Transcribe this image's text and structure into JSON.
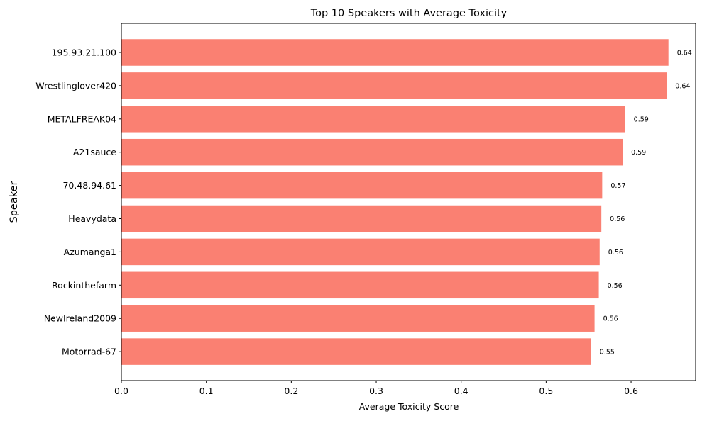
{
  "chart_data": {
    "type": "bar",
    "orientation": "horizontal",
    "title": "Top 10 Speakers with Average Toxicity",
    "xlabel": "Average Toxicity Score",
    "ylabel": "Speaker",
    "xlim": [
      0,
      0.676
    ],
    "xticks": [
      "0.0",
      "0.1",
      "0.2",
      "0.3",
      "0.4",
      "0.5",
      "0.6"
    ],
    "grid": false,
    "bar_color": "#fa8072",
    "categories": [
      "195.93.21.100",
      "Wrestlinglover420",
      "METALFREAK04",
      "A21sauce",
      "70.48.94.61",
      "Heavydata",
      "Azumanga1",
      "Rockinthefarm",
      "NewIreland2009",
      "Motorrad-67"
    ],
    "values": [
      0.644,
      0.642,
      0.593,
      0.59,
      0.566,
      0.565,
      0.563,
      0.562,
      0.557,
      0.553
    ],
    "value_labels": [
      "0.64",
      "0.64",
      "0.59",
      "0.59",
      "0.57",
      "0.56",
      "0.56",
      "0.56",
      "0.56",
      "0.55"
    ]
  }
}
